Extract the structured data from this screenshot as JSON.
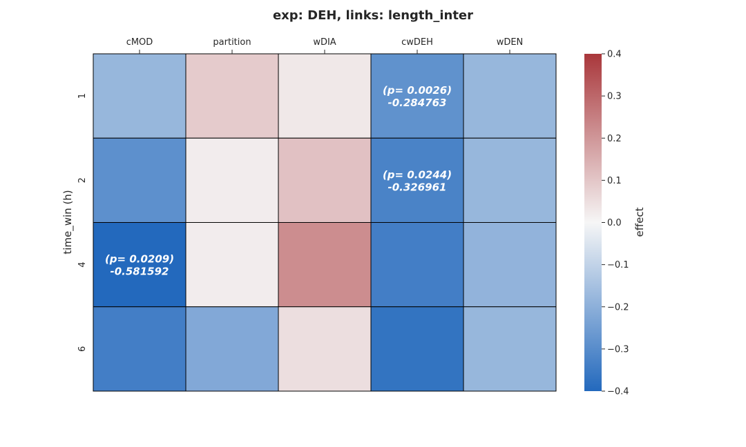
{
  "chart_data": {
    "type": "heatmap",
    "title": "exp: DEH, links: length_inter",
    "xlabel": "",
    "ylabel": "time_win (h)",
    "x_categories": [
      "cMOD",
      "partition",
      "wDIA",
      "cwDEH",
      "wDEN"
    ],
    "y_categories": [
      "1",
      "2",
      "4",
      "6"
    ],
    "values": [
      [
        -0.18,
        0.09,
        0.03,
        -0.284763,
        -0.18
      ],
      [
        -0.29,
        0.02,
        0.11,
        -0.326961,
        -0.18
      ],
      [
        -0.581592,
        0.02,
        0.22,
        -0.34,
        -0.19
      ],
      [
        -0.34,
        -0.22,
        0.05,
        -0.37,
        -0.18
      ]
    ],
    "annotations": [
      {
        "row": 0,
        "col": 3,
        "p_text": "(p= 0.0026)",
        "value_text": "-0.284763"
      },
      {
        "row": 1,
        "col": 3,
        "p_text": "(p= 0.0244)",
        "value_text": "-0.326961"
      },
      {
        "row": 2,
        "col": 0,
        "p_text": "(p= 0.0209)",
        "value_text": "-0.581592"
      }
    ],
    "colorbar": {
      "label": "effect",
      "vmin": -0.4,
      "vmax": 0.4,
      "ticks": [
        -0.4,
        -0.3,
        -0.2,
        -0.1,
        0.0,
        0.1,
        0.2,
        0.3,
        0.4
      ],
      "tick_labels": [
        "−0.4",
        "−0.3",
        "−0.2",
        "−0.1",
        "0.0",
        "0.1",
        "0.2",
        "0.3",
        "0.4"
      ],
      "colormap": "vlag",
      "color_low": "#2369bd",
      "color_mid": "#f6f6f6",
      "color_high": "#a9373b"
    },
    "x_axis_position": "top",
    "grid": false,
    "cell_edge_color": "#000000"
  }
}
